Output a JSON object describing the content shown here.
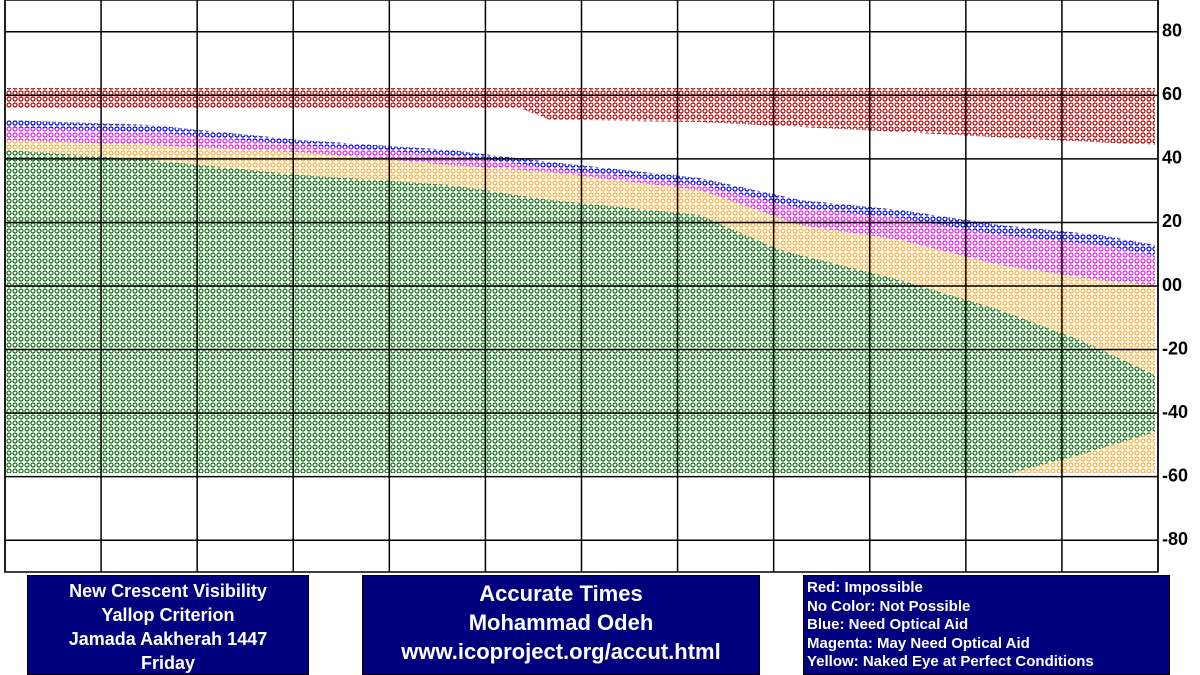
{
  "map": {
    "ylim": [
      -90,
      90
    ],
    "yticks": [
      80,
      60,
      40,
      20,
      {
        "value": 0,
        "label": "00"
      },
      -20,
      -40,
      -60,
      -80
    ]
  },
  "left_box": {
    "lines": [
      "New Crescent Visibility",
      "Yallop Criterion",
      "Jamada Aakherah 1447",
      "Friday"
    ]
  },
  "center_box": {
    "lines": [
      "Accurate Times",
      "Mohammad Odeh",
      "www.icoproject.org/accut.html"
    ]
  },
  "legend": {
    "lines": [
      "Red: Impossible",
      "No Color: Not Possible",
      "Blue: Need Optical Aid",
      "Magenta: May Need Optical Aid",
      "Yellow: Naked Eye at Perfect Conditions"
    ]
  }
}
